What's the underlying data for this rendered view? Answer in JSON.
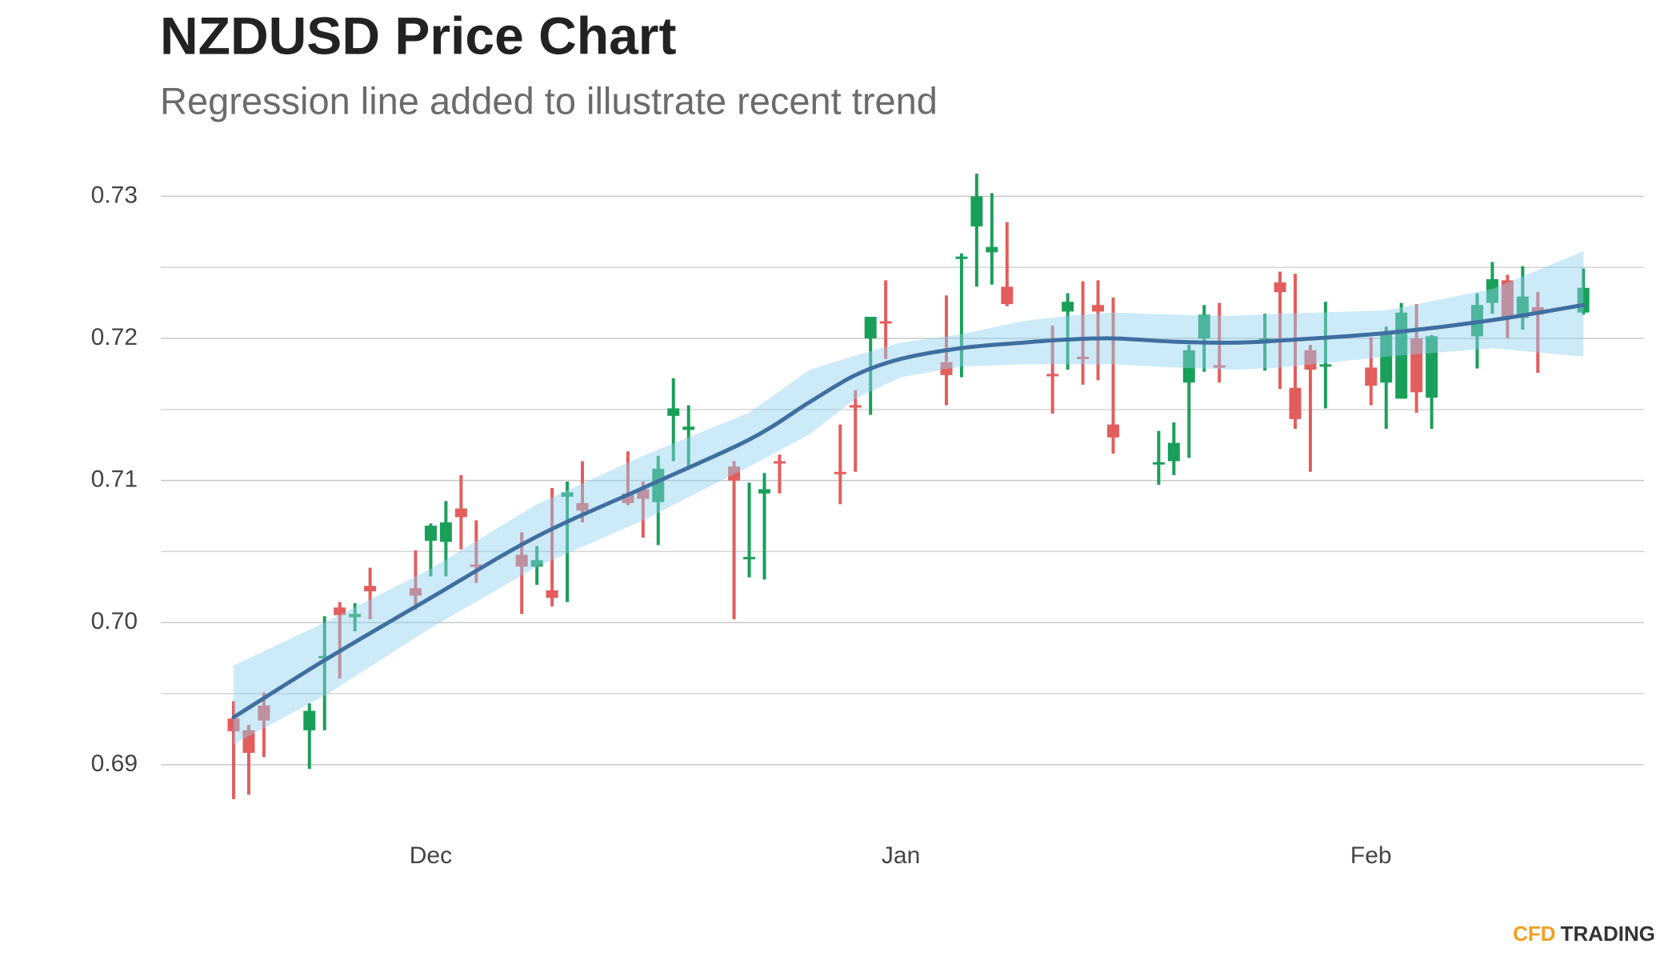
{
  "chart_data": {
    "type": "candlestick",
    "title": "NZDUSD Price Chart",
    "subtitle": "Regression line added to illustrate recent trend",
    "brand": {
      "first": "CFD",
      "second": "TRADING"
    },
    "up_color": "#1a9f5a",
    "down_color": "#e35d5d",
    "x": [
      0,
      1,
      2,
      5,
      6,
      7,
      8,
      9,
      12,
      13,
      14,
      15,
      16,
      19,
      20,
      21,
      22,
      23,
      26,
      27,
      28,
      29,
      30,
      33,
      34,
      35,
      36,
      40,
      41,
      42,
      43,
      47,
      48,
      49,
      50,
      51,
      54,
      55,
      56,
      57,
      58,
      61,
      62,
      63,
      64,
      65,
      68,
      69,
      70,
      71,
      72,
      75,
      76,
      77,
      78,
      79,
      82,
      83,
      84,
      85,
      86,
      89
    ],
    "open": [
      0.69325,
      0.69242,
      0.69417,
      0.69242,
      0.6975,
      0.70106,
      0.70038,
      0.70258,
      0.70242,
      0.70576,
      0.70568,
      0.70803,
      0.70409,
      0.70477,
      0.70394,
      0.70227,
      0.70886,
      0.70841,
      0.70909,
      0.70939,
      0.70848,
      0.71455,
      0.71356,
      0.71098,
      0.70447,
      0.70909,
      0.71136,
      0.71061,
      0.7153,
      0.72,
      0.72121,
      0.71833,
      0.72561,
      0.72788,
      0.72606,
      0.72364,
      0.7175,
      0.72189,
      0.71871,
      0.72235,
      0.71394,
      0.71114,
      0.71136,
      0.71689,
      0.72,
      0.71811,
      0.71985,
      0.72394,
      0.71652,
      0.71917,
      0.71811,
      0.71795,
      0.71689,
      0.71576,
      0.72,
      0.71583,
      0.72015,
      0.7225,
      0.72409,
      0.72144,
      0.7222,
      0.72182
    ],
    "high": [
      0.69447,
      0.6928,
      0.69508,
      0.69432,
      0.70045,
      0.70144,
      0.70136,
      0.70386,
      0.70508,
      0.70697,
      0.70856,
      0.71038,
      0.7072,
      0.70636,
      0.70538,
      0.70947,
      0.70992,
      0.71136,
      0.71205,
      0.70992,
      0.71174,
      0.7172,
      0.7153,
      0.71136,
      0.70985,
      0.71053,
      0.71182,
      0.71394,
      0.71636,
      0.72152,
      0.72409,
      0.72303,
      0.72598,
      0.73159,
      0.73023,
      0.72818,
      0.72091,
      0.72318,
      0.72402,
      0.72409,
      0.72288,
      0.71349,
      0.71409,
      0.71955,
      0.72235,
      0.7225,
      0.72174,
      0.7247,
      0.72455,
      0.71955,
      0.72258,
      0.72008,
      0.72083,
      0.7225,
      0.72242,
      0.72023,
      0.72318,
      0.72538,
      0.72447,
      0.72508,
      0.72326,
      0.72492
    ],
    "low": [
      0.68758,
      0.68788,
      0.69053,
      0.6897,
      0.69242,
      0.69606,
      0.69939,
      0.70023,
      0.70091,
      0.70326,
      0.70326,
      0.70515,
      0.7028,
      0.70061,
      0.70265,
      0.70114,
      0.70144,
      0.70705,
      0.70826,
      0.70598,
      0.70545,
      0.71136,
      0.71098,
      0.70023,
      0.70318,
      0.70303,
      0.70909,
      0.70833,
      0.71061,
      0.71462,
      0.71856,
      0.7153,
      0.71727,
      0.72364,
      0.72379,
      0.72227,
      0.7147,
      0.7178,
      0.71674,
      0.71705,
      0.71189,
      0.7097,
      0.71038,
      0.71159,
      0.71765,
      0.71689,
      0.71773,
      0.71644,
      0.71364,
      0.71061,
      0.71508,
      0.7153,
      0.71364,
      0.71576,
      0.71477,
      0.71364,
      0.71788,
      0.72174,
      0.72,
      0.72061,
      0.71758,
      0.72167
    ],
    "close": [
      0.69235,
      0.69083,
      0.69311,
      0.69379,
      0.69765,
      0.70053,
      0.70061,
      0.7022,
      0.70189,
      0.70682,
      0.70705,
      0.70742,
      0.70402,
      0.70394,
      0.70439,
      0.70174,
      0.70917,
      0.70788,
      0.70841,
      0.70871,
      0.71083,
      0.71508,
      0.71379,
      0.71,
      0.70462,
      0.70939,
      0.71129,
      0.71045,
      0.71515,
      0.72152,
      0.72106,
      0.71742,
      0.72576,
      0.73,
      0.72644,
      0.72242,
      0.71742,
      0.72258,
      0.71864,
      0.72189,
      0.71303,
      0.71129,
      0.71265,
      0.71917,
      0.72167,
      0.71803,
      0.72,
      0.72326,
      0.71432,
      0.7178,
      0.71818,
      0.71667,
      0.72045,
      0.72182,
      0.71621,
      0.72015,
      0.72235,
      0.72417,
      0.72144,
      0.72295,
      0.72167,
      0.72356
    ],
    "regression": {
      "color": "#3f6fa0",
      "band_color": "#8fd0f0",
      "x": [
        0,
        6,
        13,
        20,
        27,
        34,
        38,
        41,
        44,
        48,
        52,
        55,
        58,
        62,
        66,
        69,
        76,
        83,
        89
      ],
      "values": [
        0.69333,
        0.69735,
        0.70174,
        0.70606,
        0.70947,
        0.71288,
        0.71553,
        0.71742,
        0.71856,
        0.71932,
        0.7197,
        0.71992,
        0.72,
        0.71977,
        0.7197,
        0.71985,
        0.72038,
        0.72129,
        0.72235
      ],
      "upper": [
        0.69697,
        0.7,
        0.70379,
        0.70833,
        0.71174,
        0.71477,
        0.7178,
        0.71879,
        0.7197,
        0.7203,
        0.72121,
        0.72159,
        0.72182,
        0.72167,
        0.72159,
        0.72174,
        0.72197,
        0.72348,
        0.72614
      ],
      "lower": [
        0.69144,
        0.69485,
        0.69962,
        0.70394,
        0.7072,
        0.71098,
        0.71326,
        0.71576,
        0.71727,
        0.71803,
        0.71818,
        0.71818,
        0.71818,
        0.71795,
        0.7178,
        0.71795,
        0.71871,
        0.71932,
        0.71871
      ]
    },
    "xlim": [
      -4.8,
      93
    ],
    "xticks": [
      {
        "value": 13,
        "label": "Dec"
      },
      {
        "value": 44,
        "label": "Jan"
      },
      {
        "value": 75,
        "label": "Feb"
      }
    ],
    "ylim": [
      0.6865,
      0.7325
    ],
    "yticks": [
      0.69,
      {
        "value": 0.7,
        "label": "0.70"
      },
      0.71,
      0.72,
      0.73
    ],
    "minor_yticks": [
      0.695,
      0.705,
      0.715,
      0.725
    ],
    "grid": true
  }
}
